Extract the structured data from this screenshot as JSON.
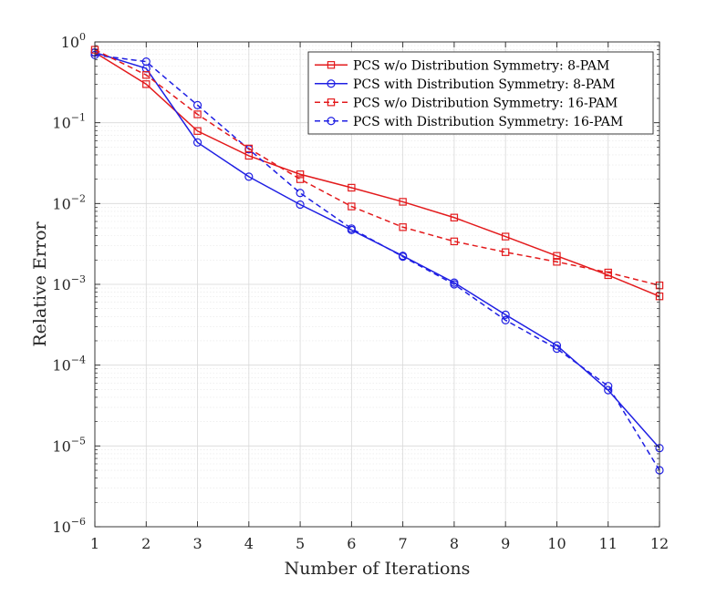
{
  "chart_data": {
    "type": "line",
    "xlabel": "Number of Iterations",
    "ylabel": "Relative Error",
    "xlim": [
      1,
      12
    ],
    "ylim": [
      1e-06,
      1
    ],
    "yscale": "log",
    "grid": true,
    "x_ticks": [
      "1",
      "2",
      "3",
      "4",
      "5",
      "6",
      "7",
      "8",
      "9",
      "10",
      "11",
      "12"
    ],
    "y_ticks": [
      {
        "value": 1e-06,
        "base": "10",
        "exp": "−6"
      },
      {
        "value": 1e-05,
        "base": "10",
        "exp": "−5"
      },
      {
        "value": 0.0001,
        "base": "10",
        "exp": "−4"
      },
      {
        "value": 0.001,
        "base": "10",
        "exp": "−3"
      },
      {
        "value": 0.01,
        "base": "10",
        "exp": "−2"
      },
      {
        "value": 0.1,
        "base": "10",
        "exp": "−1"
      },
      {
        "value": 1,
        "base": "10",
        "exp": "0"
      }
    ],
    "legend_position": "top-right",
    "x": [
      1,
      2,
      3,
      4,
      5,
      6,
      7,
      8,
      9,
      10,
      11,
      12
    ],
    "series": [
      {
        "name": "PCS w/o Distribution Symmetry: 8-PAM",
        "color": "#e31a1c",
        "dash": "solid",
        "marker": "square",
        "values": [
          0.74,
          0.3,
          0.079,
          0.039,
          0.023,
          0.0157,
          0.0105,
          0.0067,
          0.0039,
          0.00225,
          0.0013,
          0.00071
        ]
      },
      {
        "name": "PCS with Distribution Symmetry: 8-PAM",
        "color": "#1f1fe3",
        "dash": "solid",
        "marker": "circle",
        "values": [
          0.74,
          0.47,
          0.057,
          0.0215,
          0.0097,
          0.0047,
          0.00225,
          0.00105,
          0.00042,
          0.000175,
          4.9e-05,
          9.4e-06
        ]
      },
      {
        "name": "PCS with Distribution Symmetry: 16-PAM",
        "color": "#1f1fe3",
        "dash": "dashed",
        "marker": "circle",
        "values": [
          0.69,
          0.57,
          0.165,
          0.047,
          0.0135,
          0.0049,
          0.0022,
          0.001,
          0.00036,
          0.00016,
          5.5e-05,
          5e-06
        ]
      },
      {
        "name": "PCS w/o Distribution Symmetry: 16-PAM",
        "color": "#e31a1c",
        "dash": "dashed",
        "marker": "square",
        "values": [
          0.8,
          0.39,
          0.127,
          0.048,
          0.02,
          0.0092,
          0.0051,
          0.0034,
          0.0025,
          0.0019,
          0.0014,
          0.00097
        ]
      }
    ],
    "legend_order": [
      0,
      1,
      3,
      2
    ]
  }
}
